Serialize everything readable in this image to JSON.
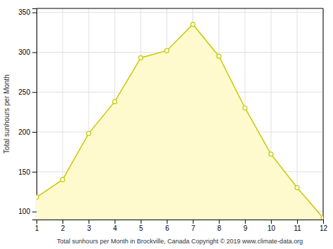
{
  "chart_data": {
    "type": "area",
    "x": [
      1,
      2,
      3,
      4,
      5,
      6,
      7,
      8,
      9,
      10,
      11,
      12
    ],
    "series": [
      {
        "color": "#C8C800",
        "marker": "circle",
        "values": [
          118,
          140,
          198,
          238,
          293,
          302,
          335,
          295,
          230,
          172,
          130,
          92
        ]
      }
    ],
    "color": "#FFFACD",
    "x_label": "Total sunhours per Month in Brockville, Canada Copyright © 2019 www.climate-data.org",
    "y_label": "Total sunhours per Month",
    "xlim": [
      1,
      12
    ],
    "ylim": [
      90,
      355
    ],
    "xticks": [
      1,
      2,
      3,
      4,
      5,
      6,
      7,
      8,
      9,
      10,
      11,
      12
    ],
    "yticks": [
      100,
      150,
      200,
      250,
      300,
      350
    ],
    "grid": true
  }
}
